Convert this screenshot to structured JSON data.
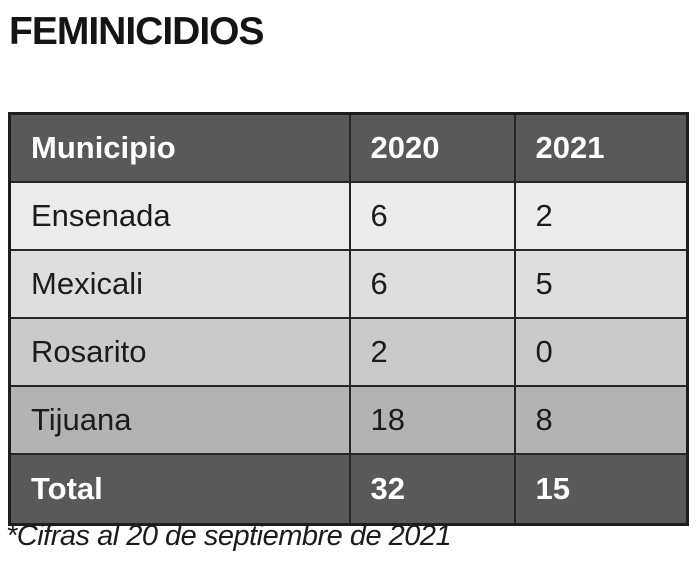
{
  "title": "FEMINICIDIOS",
  "footnote": "*Cifras al 20 de septiembre de 2021",
  "colors": {
    "header_bg": "#58595b",
    "total_bg": "#58595b",
    "header_text": "#ffffff",
    "body_text": "#1c1c1c",
    "border": "#262626",
    "row_bgs": [
      "#ececed",
      "#dededf",
      "#c9cacb",
      "#b2b3b5"
    ]
  },
  "chart_data": {
    "type": "table",
    "title": "FEMINICIDIOS",
    "columns": [
      "Municipio",
      "2020",
      "2021"
    ],
    "rows": [
      [
        "Ensenada",
        "6",
        "2"
      ],
      [
        "Mexicali",
        "6",
        "5"
      ],
      [
        "Rosarito",
        "2",
        "0"
      ],
      [
        "Tijuana",
        "18",
        "8"
      ]
    ],
    "total_row": [
      "Total",
      "32",
      "15"
    ],
    "footnote": "*Cifras al 20 de septiembre de 2021"
  }
}
